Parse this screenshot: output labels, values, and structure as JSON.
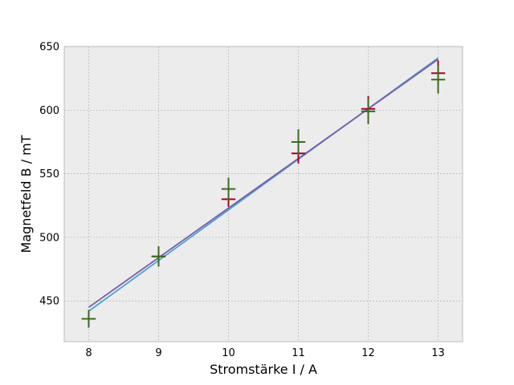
{
  "chart_data": {
    "type": "scatter",
    "xlabel": "Stromstärke I / A",
    "ylabel": "Magnetfeld B / mT",
    "xlim": [
      7.65,
      13.35
    ],
    "ylim": [
      418,
      650
    ],
    "x_ticks": [
      8,
      9,
      10,
      11,
      12,
      13
    ],
    "y_ticks": [
      450,
      500,
      550,
      600,
      650
    ],
    "grid": true,
    "background": "#ececec",
    "series": [
      {
        "kind": "errorbar",
        "color": "#a50026",
        "x": [
          8,
          9,
          10,
          11,
          12,
          13
        ],
        "y": [
          436,
          485,
          530,
          566,
          601,
          629
        ],
        "xerr": 0.1,
        "yerr": [
          5,
          6,
          6,
          8,
          10,
          10
        ]
      },
      {
        "kind": "errorbar",
        "color": "#3d6b1f",
        "x": [
          8,
          9,
          10,
          11,
          12,
          13
        ],
        "y": [
          436,
          485,
          538,
          575,
          599,
          624
        ],
        "xerr": 0.1,
        "yerr": [
          7,
          8,
          9,
          10,
          10,
          11
        ]
      },
      {
        "kind": "line",
        "color": "#4a9fd1",
        "x": [
          8,
          13
        ],
        "y": [
          442,
          641
        ]
      },
      {
        "kind": "line",
        "color": "#7b5ea7",
        "x": [
          8,
          13
        ],
        "y": [
          445,
          640
        ]
      }
    ]
  }
}
